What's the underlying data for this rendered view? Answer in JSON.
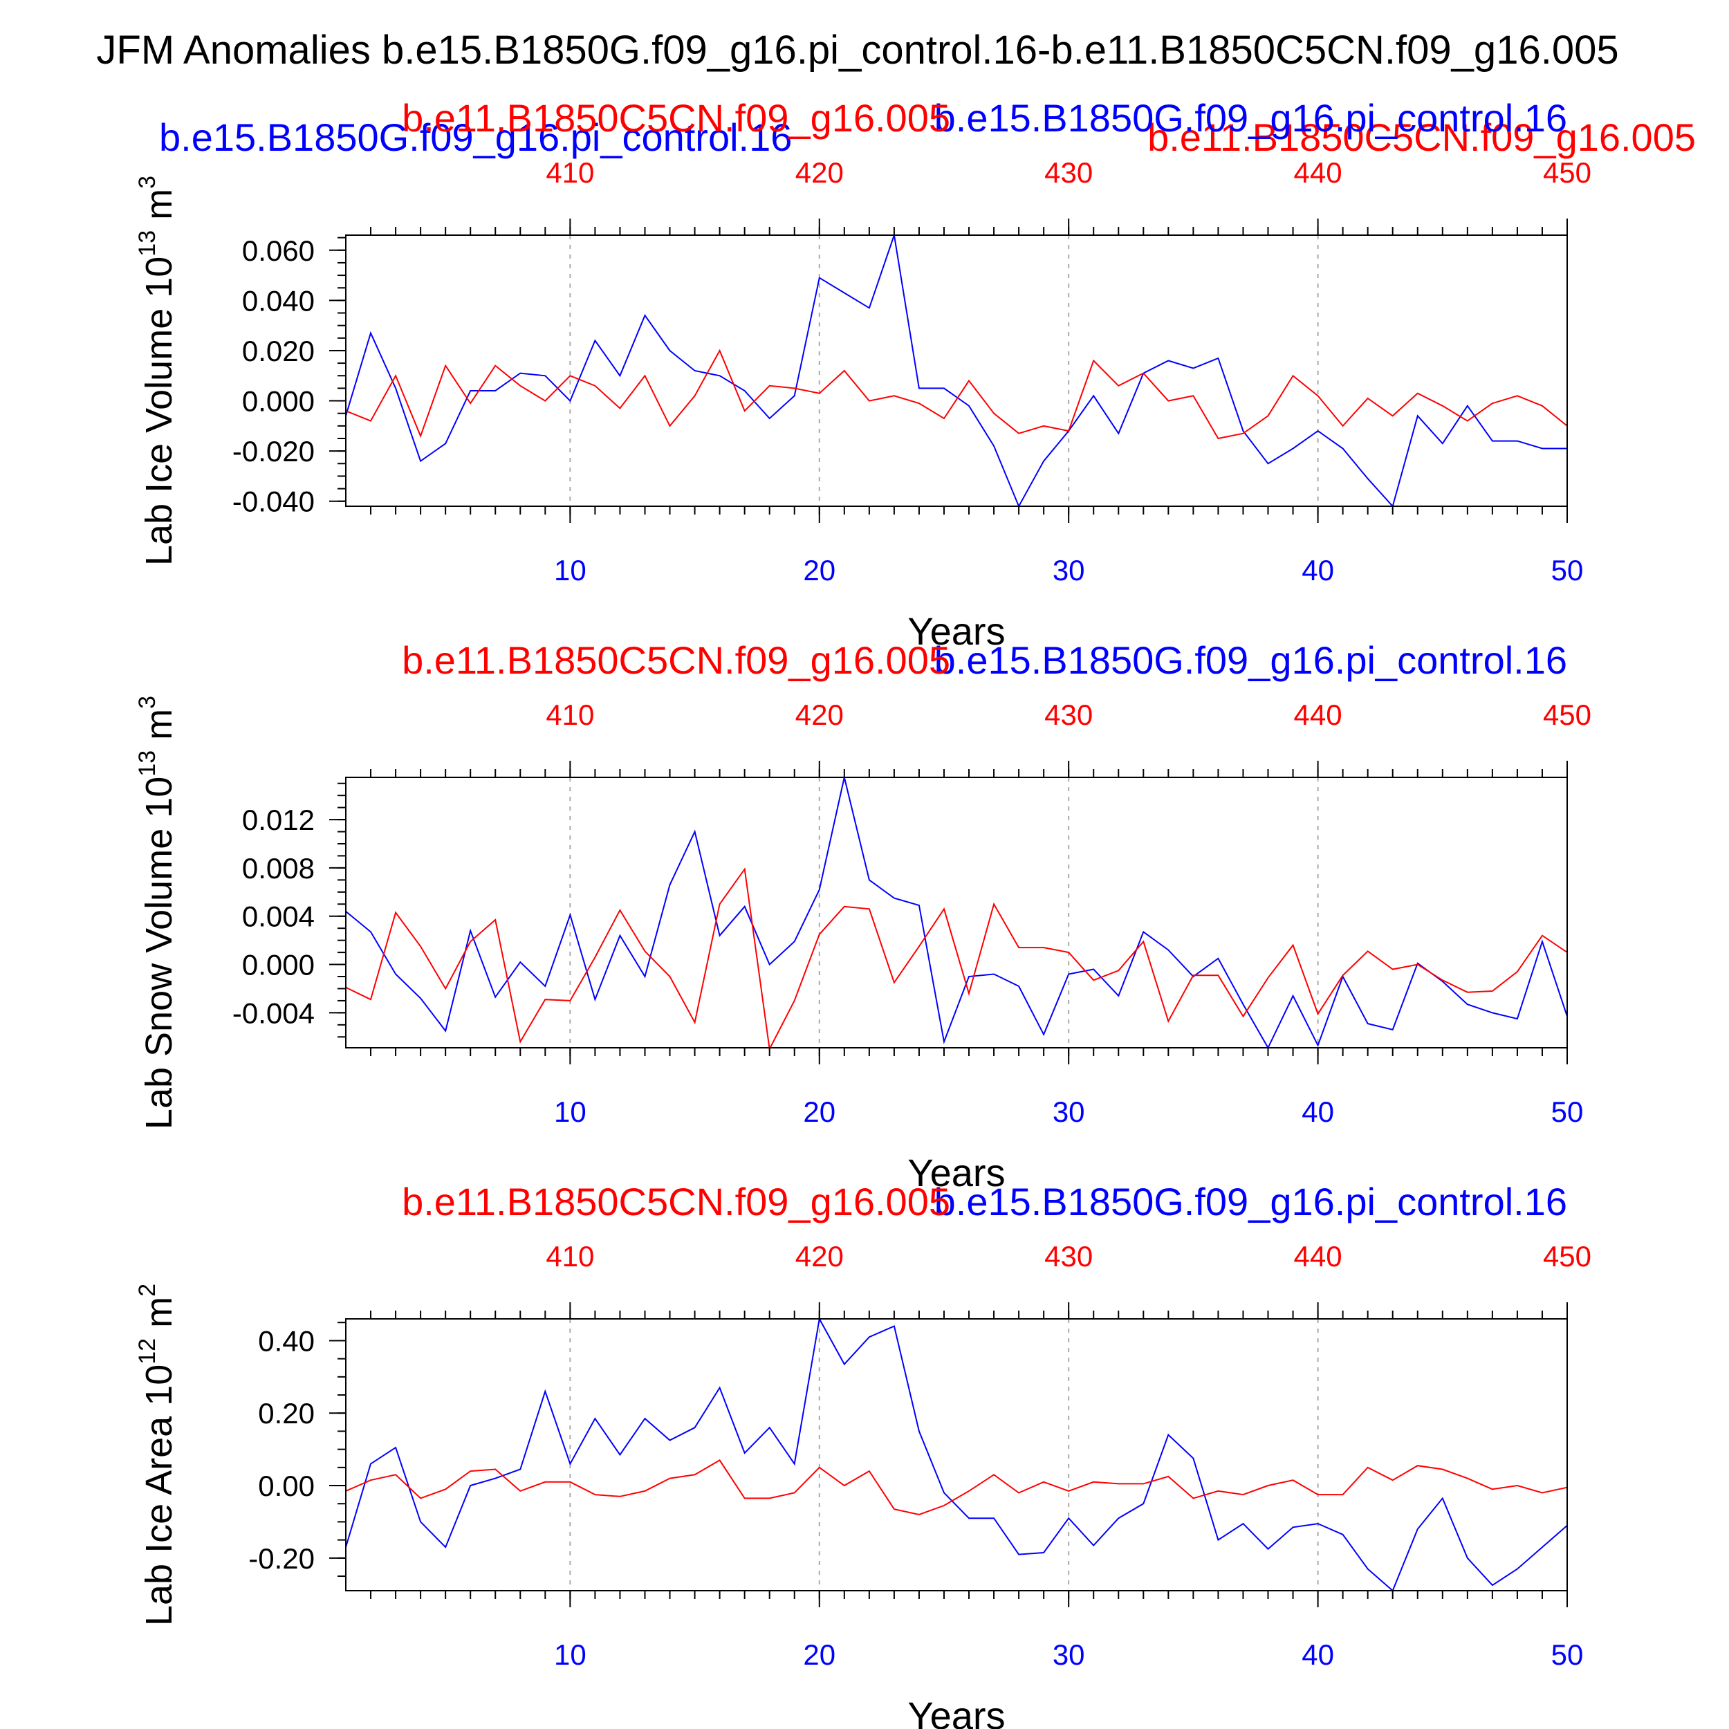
{
  "title": "JFM Anomalies b.e15.B1850G.f09_g16.pi_control.16-b.e11.B1850C5CN.f09_g16.005",
  "legend_overlay": {
    "case_label": "b.e15.B1850G.f09_g16.pi_control.16",
    "ctrl_label": "b.e11.B1850C5CN.f09_g16.005"
  },
  "colors": {
    "case": "#0000ff",
    "ctrl": "#ff0000",
    "axis": "#000000",
    "grid": "#aaaaaa"
  },
  "chart_data": [
    {
      "type": "line",
      "ylabel": "Lab Ice Volume 10",
      "ylabel_exp": "13",
      "ylabel_unit": " m",
      "ylabel_unit_exp": "3",
      "xlabel": "Years",
      "top_label_ctrl": "b.e11.B1850C5CN.f09_g16.005",
      "top_label_case": "b.e15.B1850G.f09_g16.pi_control.16",
      "xlim": [
        1,
        50
      ],
      "ylim": [
        -0.042,
        0.066
      ],
      "yticks": [
        -0.04,
        -0.02,
        0.0,
        0.02,
        0.04,
        0.06
      ],
      "yticklabels": [
        "-0.040",
        "-0.020",
        "0.000",
        "0.020",
        "0.040",
        "0.060"
      ],
      "yminor_step": 0.005,
      "xticks": [
        10,
        20,
        30,
        40,
        50
      ],
      "xticklabels": [
        "10",
        "20",
        "30",
        "40",
        "50"
      ],
      "top_xticklabels": [
        "410",
        "420",
        "430",
        "440",
        "450"
      ],
      "series": [
        {
          "name": "b.e15.B1850G.f09_g16.pi_control.16",
          "color": "case",
          "x": [
            1,
            2,
            3,
            4,
            5,
            6,
            7,
            8,
            9,
            10,
            11,
            12,
            13,
            14,
            15,
            16,
            17,
            18,
            19,
            20,
            21,
            22,
            23,
            24,
            25,
            26,
            27,
            28,
            29,
            30,
            31,
            32,
            33,
            34,
            35,
            36,
            37,
            38,
            39,
            40,
            41,
            42,
            43,
            44,
            45,
            46,
            47,
            48,
            49,
            50
          ],
          "values": [
            -0.006,
            0.027,
            0.005,
            -0.024,
            -0.017,
            0.004,
            0.004,
            0.011,
            0.01,
            -0.0,
            0.024,
            0.01,
            0.034,
            0.02,
            0.012,
            0.01,
            0.004,
            -0.007,
            0.002,
            0.049,
            0.043,
            0.037,
            0.066,
            0.005,
            0.005,
            -0.002,
            -0.018,
            -0.042,
            -0.024,
            -0.012,
            0.002,
            -0.013,
            0.011,
            0.016,
            0.013,
            0.017,
            -0.012,
            -0.025,
            -0.019,
            -0.012,
            -0.019,
            -0.031,
            -0.042,
            -0.006,
            -0.017,
            -0.002,
            -0.016,
            -0.016,
            -0.019,
            -0.019
          ]
        },
        {
          "name": "b.e11.B1850C5CN.f09_g16.005",
          "color": "ctrl",
          "x": [
            1,
            2,
            3,
            4,
            5,
            6,
            7,
            8,
            9,
            10,
            11,
            12,
            13,
            14,
            15,
            16,
            17,
            18,
            19,
            20,
            21,
            22,
            23,
            24,
            25,
            26,
            27,
            28,
            29,
            30,
            31,
            32,
            33,
            34,
            35,
            36,
            37,
            38,
            39,
            40,
            41,
            42,
            43,
            44,
            45,
            46,
            47,
            48,
            49,
            50
          ],
          "values": [
            -0.004,
            -0.008,
            0.01,
            -0.014,
            0.014,
            -0.001,
            0.014,
            0.006,
            -0.0,
            0.01,
            0.006,
            -0.003,
            0.01,
            -0.01,
            0.002,
            0.02,
            -0.004,
            0.006,
            0.005,
            0.003,
            0.012,
            0.0,
            0.002,
            -0.001,
            -0.007,
            0.008,
            -0.005,
            -0.013,
            -0.01,
            -0.012,
            0.016,
            0.006,
            0.011,
            -0.0,
            0.002,
            -0.015,
            -0.013,
            -0.006,
            0.01,
            0.002,
            -0.01,
            0.001,
            -0.006,
            0.003,
            -0.002,
            -0.008,
            -0.001,
            0.002,
            -0.002,
            -0.01
          ]
        }
      ]
    },
    {
      "type": "line",
      "ylabel": "Lab Snow Volume 10",
      "ylabel_exp": "13",
      "ylabel_unit": " m",
      "ylabel_unit_exp": "3",
      "xlabel": "Years",
      "top_label_ctrl": "b.e11.B1850C5CN.f09_g16.005",
      "top_label_case": "b.e15.B1850G.f09_g16.pi_control.16",
      "xlim": [
        1,
        50
      ],
      "ylim": [
        -0.0069,
        0.0155
      ],
      "yticks": [
        -0.004,
        0.0,
        0.004,
        0.008,
        0.012
      ],
      "yticklabels": [
        "-0.004",
        "0.000",
        "0.004",
        "0.008",
        "0.012"
      ],
      "yminor_step": 0.001,
      "xticks": [
        10,
        20,
        30,
        40,
        50
      ],
      "xticklabels": [
        "10",
        "20",
        "30",
        "40",
        "50"
      ],
      "top_xticklabels": [
        "410",
        "420",
        "430",
        "440",
        "450"
      ],
      "series": [
        {
          "name": "b.e15.B1850G.f09_g16.pi_control.16",
          "color": "case",
          "x": [
            1,
            2,
            3,
            4,
            5,
            6,
            7,
            8,
            9,
            10,
            11,
            12,
            13,
            14,
            15,
            16,
            17,
            18,
            19,
            20,
            21,
            22,
            23,
            24,
            25,
            26,
            27,
            28,
            29,
            30,
            31,
            32,
            33,
            34,
            35,
            36,
            37,
            38,
            39,
            40,
            41,
            42,
            43,
            44,
            45,
            46,
            47,
            48,
            49,
            50
          ],
          "values": [
            0.0044,
            0.0027,
            -0.0008,
            -0.0028,
            -0.0055,
            0.0028,
            -0.0027,
            0.0002,
            -0.0018,
            0.0041,
            -0.0029,
            0.0024,
            -0.001,
            0.0066,
            0.011,
            0.0024,
            0.0048,
            0.0,
            0.0019,
            0.0062,
            0.0155,
            0.007,
            0.0055,
            0.0049,
            -0.0064,
            -0.001,
            -0.0008,
            -0.0018,
            -0.0058,
            -0.0008,
            -0.0004,
            -0.0026,
            0.0027,
            0.0012,
            -0.001,
            0.0005,
            -0.0033,
            -0.0069,
            -0.0026,
            -0.0067,
            -0.001,
            -0.0049,
            -0.0054,
            0.0001,
            -0.0014,
            -0.0033,
            -0.004,
            -0.0045,
            0.0019,
            -0.0043
          ]
        },
        {
          "name": "b.e11.B1850C5CN.f09_g16.005",
          "color": "ctrl",
          "x": [
            1,
            2,
            3,
            4,
            5,
            6,
            7,
            8,
            9,
            10,
            11,
            12,
            13,
            14,
            15,
            16,
            17,
            18,
            19,
            20,
            21,
            22,
            23,
            24,
            25,
            26,
            27,
            28,
            29,
            30,
            31,
            32,
            33,
            34,
            35,
            36,
            37,
            38,
            39,
            40,
            41,
            42,
            43,
            44,
            45,
            46,
            47,
            48,
            49,
            50
          ],
          "values": [
            -0.0019,
            -0.0029,
            0.0043,
            0.0015,
            -0.002,
            0.0019,
            0.0037,
            -0.0064,
            -0.0029,
            -0.003,
            0.0006,
            0.0045,
            0.0011,
            -0.001,
            -0.0048,
            0.005,
            0.0079,
            -0.007,
            -0.003,
            0.0025,
            0.0048,
            0.0046,
            -0.0015,
            0.0015,
            0.0046,
            -0.0024,
            0.005,
            0.0014,
            0.0014,
            0.001,
            -0.0013,
            -0.0005,
            0.0019,
            -0.0047,
            -0.0009,
            -0.0009,
            -0.0043,
            -0.0011,
            0.0016,
            -0.0041,
            -0.0009,
            0.0011,
            -0.0004,
            0.0,
            -0.0013,
            -0.0023,
            -0.0022,
            -0.0006,
            0.0024,
            0.001
          ]
        }
      ]
    },
    {
      "type": "line",
      "ylabel": "Lab Ice Area 10",
      "ylabel_exp": "12",
      "ylabel_unit": " m",
      "ylabel_unit_exp": "2",
      "xlabel": "Years",
      "top_label_ctrl": "b.e11.B1850C5CN.f09_g16.005",
      "top_label_case": "b.e15.B1850G.f09_g16.pi_control.16",
      "xlim": [
        1,
        50
      ],
      "ylim": [
        -0.29,
        0.46
      ],
      "yticks": [
        -0.2,
        0.0,
        0.2,
        0.4
      ],
      "yticklabels": [
        "-0.20",
        "0.00",
        "0.20",
        "0.40"
      ],
      "yminor_step": 0.05,
      "xticks": [
        10,
        20,
        30,
        40,
        50
      ],
      "xticklabels": [
        "10",
        "20",
        "30",
        "40",
        "50"
      ],
      "top_xticklabels": [
        "410",
        "420",
        "430",
        "440",
        "450"
      ],
      "series": [
        {
          "name": "b.e15.B1850G.f09_g16.pi_control.16",
          "color": "case",
          "x": [
            1,
            2,
            3,
            4,
            5,
            6,
            7,
            8,
            9,
            10,
            11,
            12,
            13,
            14,
            15,
            16,
            17,
            18,
            19,
            20,
            21,
            22,
            23,
            24,
            25,
            26,
            27,
            28,
            29,
            30,
            31,
            32,
            33,
            34,
            35,
            36,
            37,
            38,
            39,
            40,
            41,
            42,
            43,
            44,
            45,
            46,
            47,
            48,
            49,
            50
          ],
          "values": [
            -0.17,
            0.06,
            0.105,
            -0.1,
            -0.17,
            -0.0,
            0.02,
            0.045,
            0.26,
            0.06,
            0.185,
            0.085,
            0.185,
            0.125,
            0.16,
            0.27,
            0.09,
            0.16,
            0.06,
            0.46,
            0.335,
            0.41,
            0.44,
            0.15,
            -0.02,
            -0.09,
            -0.09,
            -0.19,
            -0.185,
            -0.09,
            -0.165,
            -0.09,
            -0.05,
            0.14,
            0.075,
            -0.15,
            -0.105,
            -0.175,
            -0.115,
            -0.105,
            -0.135,
            -0.23,
            -0.29,
            -0.12,
            -0.035,
            -0.2,
            -0.275,
            -0.23,
            -0.17,
            -0.11
          ]
        },
        {
          "name": "b.e11.B1850C5CN.f09_g16.005",
          "color": "ctrl",
          "x": [
            1,
            2,
            3,
            4,
            5,
            6,
            7,
            8,
            9,
            10,
            11,
            12,
            13,
            14,
            15,
            16,
            17,
            18,
            19,
            20,
            21,
            22,
            23,
            24,
            25,
            26,
            27,
            28,
            29,
            30,
            31,
            32,
            33,
            34,
            35,
            36,
            37,
            38,
            39,
            40,
            41,
            42,
            43,
            44,
            45,
            46,
            47,
            48,
            49,
            50
          ],
          "values": [
            -0.015,
            0.015,
            0.03,
            -0.035,
            -0.01,
            0.04,
            0.045,
            -0.015,
            0.01,
            0.01,
            -0.025,
            -0.03,
            -0.015,
            0.02,
            0.03,
            0.07,
            -0.035,
            -0.035,
            -0.02,
            0.05,
            0.0,
            0.04,
            -0.065,
            -0.08,
            -0.055,
            -0.015,
            0.03,
            -0.02,
            0.01,
            -0.015,
            0.01,
            0.005,
            0.005,
            0.025,
            -0.035,
            -0.015,
            -0.025,
            -0.0,
            0.015,
            -0.025,
            -0.025,
            0.05,
            0.015,
            0.055,
            0.045,
            0.02,
            -0.01,
            0.0,
            -0.02,
            -0.005
          ]
        }
      ]
    }
  ]
}
